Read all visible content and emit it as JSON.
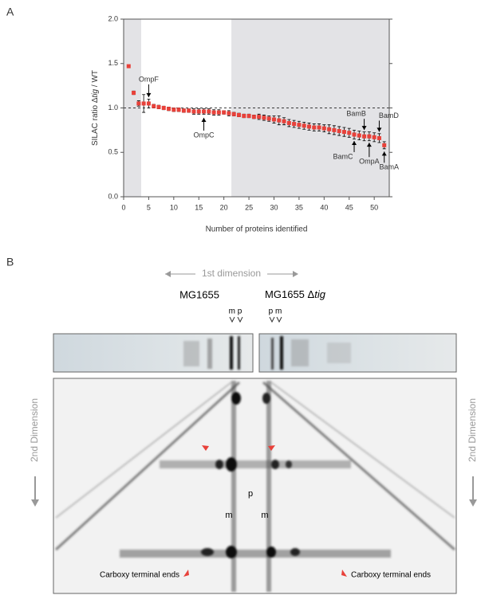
{
  "panels": [
    "A",
    "B"
  ],
  "chart_data": {
    "type": "scatter",
    "x_label": "Number of proteins identified",
    "y_label": [
      "SILAC ratio Δ",
      "tig",
      " / WT"
    ],
    "x": [
      1,
      2,
      3,
      4,
      5,
      6,
      7,
      8,
      9,
      10,
      11,
      12,
      13,
      14,
      15,
      16,
      17,
      18,
      19,
      20,
      21,
      22,
      23,
      24,
      25,
      26,
      27,
      28,
      29,
      30,
      31,
      32,
      33,
      34,
      35,
      36,
      37,
      38,
      39,
      40,
      41,
      42,
      43,
      44,
      45,
      46,
      47,
      48,
      49,
      50,
      51,
      52
    ],
    "values": [
      1.47,
      1.17,
      1.05,
      1.05,
      1.05,
      1.02,
      1.01,
      1.0,
      0.99,
      0.98,
      0.98,
      0.97,
      0.97,
      0.96,
      0.96,
      0.96,
      0.96,
      0.95,
      0.95,
      0.95,
      0.94,
      0.93,
      0.92,
      0.91,
      0.91,
      0.9,
      0.9,
      0.89,
      0.88,
      0.87,
      0.86,
      0.85,
      0.83,
      0.82,
      0.81,
      0.8,
      0.79,
      0.78,
      0.78,
      0.77,
      0.76,
      0.75,
      0.74,
      0.73,
      0.72,
      0.7,
      0.69,
      0.68,
      0.68,
      0.67,
      0.66,
      0.58
    ],
    "errors": [
      0.01,
      0.02,
      0.03,
      0.1,
      0.05,
      0.02,
      0.02,
      0.02,
      0.02,
      0.02,
      0.02,
      0.02,
      0.02,
      0.03,
      0.03,
      0.03,
      0.03,
      0.03,
      0.03,
      0.02,
      0.03,
      0.02,
      0.02,
      0.02,
      0.02,
      0.02,
      0.03,
      0.03,
      0.03,
      0.04,
      0.05,
      0.04,
      0.04,
      0.04,
      0.04,
      0.04,
      0.04,
      0.04,
      0.04,
      0.04,
      0.05,
      0.05,
      0.05,
      0.05,
      0.05,
      0.05,
      0.05,
      0.05,
      0.05,
      0.05,
      0.05,
      0.04
    ],
    "color": "#e8413a",
    "xlim": [
      0,
      53
    ],
    "ylim": [
      0,
      2
    ],
    "xticks": [
      0,
      5,
      10,
      15,
      20,
      25,
      30,
      35,
      40,
      45,
      50
    ],
    "yticks": [
      {
        "value": 0,
        "label": "0.0"
      },
      {
        "value": 0.5,
        "label": "0.5"
      },
      {
        "value": 1,
        "label": "1.0"
      },
      {
        "value": 1.5,
        "label": "1.5"
      },
      {
        "value": 2,
        "label": "2.0"
      }
    ],
    "shaded": [
      [
        0,
        3.5
      ],
      [
        21.5,
        53
      ]
    ],
    "hline": 1,
    "annotations": [
      {
        "text": "OmpF",
        "x": 5,
        "side": "above"
      },
      {
        "text": "OmpC",
        "x": 16,
        "side": "below"
      },
      {
        "text": "BamB",
        "x": 48,
        "side": "above"
      },
      {
        "text": "BamD",
        "x": 51,
        "side": "above"
      },
      {
        "text": "BamC",
        "x": 46,
        "side": "below"
      },
      {
        "text": "OmpA",
        "x": 49,
        "side": "below"
      },
      {
        "text": "BamA",
        "x": 52,
        "side": "below"
      }
    ]
  },
  "gel": {
    "first_dimension": "1st dimension",
    "strains": [
      "MG1655",
      "MG1655 Δ",
      "tig"
    ],
    "lanes_left": "m p",
    "lanes_right": "p m",
    "second_dimension": "2nd Dimension",
    "spot_p": "p",
    "spot_m": "m",
    "carboxy": "Carboxy terminal ends"
  }
}
